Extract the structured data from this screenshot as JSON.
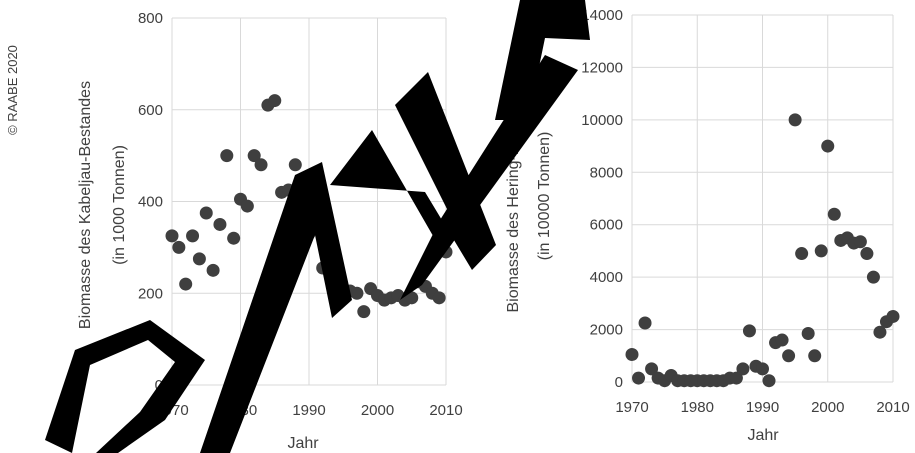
{
  "copyright": "© RAABE 2020",
  "colors": {
    "points": "#3f3f3f",
    "grid": "#d9d9d9",
    "text": "#404040",
    "watermark": "#000000"
  },
  "watermark": "ENTWURF",
  "chart_data": [
    {
      "type": "scatter",
      "title": "",
      "xlabel": "Jahr",
      "ylabel_lines": [
        "Biomasse des Kabeljau-Bestandes",
        "(in 1000 Tonnen)"
      ],
      "xlim": [
        1970,
        2010
      ],
      "ylim": [
        0,
        800
      ],
      "xticks": [
        "1970",
        "1980",
        "1990",
        "2000",
        "2010"
      ],
      "yticks": [
        "0",
        "200",
        "400",
        "600",
        "800"
      ],
      "grid": true,
      "x": [
        1970,
        1971,
        1972,
        1973,
        1974,
        1975,
        1976,
        1977,
        1978,
        1979,
        1980,
        1981,
        1982,
        1983,
        1984,
        1985,
        1986,
        1987,
        1988,
        1989,
        1990,
        1991,
        1992,
        1993,
        1994,
        1995,
        1996,
        1997,
        1998,
        1999,
        2000,
        2001,
        2002,
        2003,
        2004,
        2005,
        2006,
        2007,
        2008,
        2009,
        2010
      ],
      "y": [
        325,
        300,
        220,
        325,
        275,
        375,
        250,
        350,
        500,
        320,
        405,
        390,
        500,
        480,
        610,
        620,
        420,
        425,
        480,
        420,
        330,
        350,
        255,
        275,
        225,
        205,
        205,
        200,
        160,
        210,
        195,
        185,
        190,
        195,
        185,
        190,
        225,
        215,
        200,
        190,
        290
      ]
    },
    {
      "type": "scatter",
      "title": "",
      "xlabel": "Jahr",
      "ylabel_lines": [
        "Biomasse des Hering-Bestandes",
        "(in 10000 Tonnen)"
      ],
      "xlim": [
        1970,
        2010
      ],
      "ylim": [
        0,
        14000
      ],
      "xticks": [
        "1970",
        "1980",
        "1990",
        "2000",
        "2010"
      ],
      "yticks": [
        "0",
        "2000",
        "4000",
        "6000",
        "8000",
        "10000",
        "12000",
        "14000"
      ],
      "grid": true,
      "x": [
        1970,
        1971,
        1972,
        1973,
        1974,
        1975,
        1976,
        1977,
        1978,
        1979,
        1980,
        1981,
        1982,
        1983,
        1984,
        1985,
        1986,
        1987,
        1988,
        1989,
        1990,
        1991,
        1992,
        1993,
        1994,
        1995,
        1996,
        1997,
        1998,
        1999,
        2000,
        2001,
        2002,
        2003,
        2004,
        2005,
        2006,
        2007,
        2008,
        2009,
        2010
      ],
      "y": [
        1050,
        150,
        2250,
        500,
        150,
        50,
        250,
        50,
        50,
        50,
        50,
        50,
        50,
        50,
        50,
        150,
        150,
        500,
        1950,
        600,
        500,
        50,
        1500,
        1600,
        1000,
        10000,
        4900,
        1850,
        1000,
        5000,
        9000,
        6400,
        5400,
        5500,
        5300,
        5350,
        4900,
        4000,
        1900,
        2300,
        2500
      ]
    }
  ]
}
